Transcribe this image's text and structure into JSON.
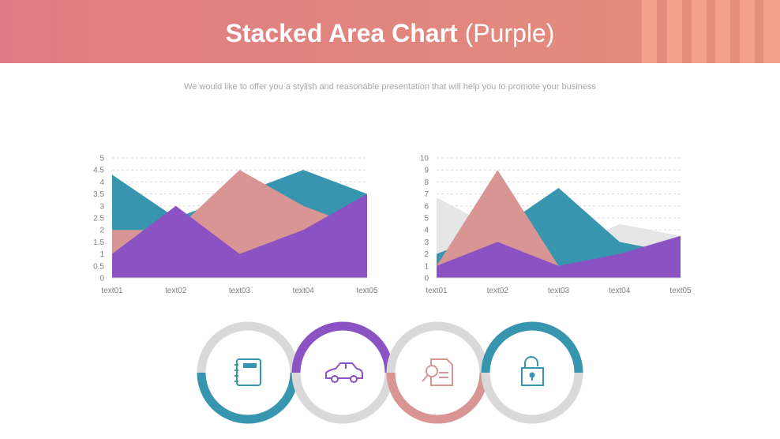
{
  "header": {
    "title_bold": "Stacked Area Chart",
    "title_light": "(Purple)"
  },
  "subtitle": "We would like to offer you a stylish and reasonable presentation that will help you to promote your business",
  "colors": {
    "teal": "#3795b0",
    "pink": "#d99593",
    "purple": "#8b52c3",
    "grey": "#e6e6e6",
    "ring": "#d9d9d9"
  },
  "chart_data": [
    {
      "type": "area",
      "categories": [
        "text01",
        "text02",
        "text03",
        "text04",
        "text05"
      ],
      "ylim": [
        0,
        5
      ],
      "yticks": [
        "0",
        "0.5",
        "1",
        "1.5",
        "2",
        "2.5",
        "3",
        "3.5",
        "4",
        "4.5",
        "5"
      ],
      "grid": true,
      "series": [
        {
          "color": "#3795b0",
          "values": [
            4.3,
            2.5,
            3.5,
            4.5,
            3.5
          ]
        },
        {
          "color": "#d99593",
          "values": [
            2,
            2,
            4.5,
            3,
            2
          ]
        },
        {
          "color": "#8b52c3",
          "values": [
            1,
            3,
            1,
            2,
            3.5
          ]
        }
      ]
    },
    {
      "type": "area",
      "categories": [
        "text01",
        "text02",
        "text03",
        "text04",
        "text05"
      ],
      "ylim": [
        0,
        10
      ],
      "yticks": [
        "0",
        "1",
        "2",
        "3",
        "4",
        "5",
        "6",
        "7",
        "8",
        "9",
        "10"
      ],
      "grid": true,
      "series": [
        {
          "color": "#e6e6e6",
          "values": [
            6.7,
            4,
            2,
            4.5,
            3.5
          ]
        },
        {
          "color": "#3795b0",
          "values": [
            2,
            4,
            7.5,
            3,
            2
          ]
        },
        {
          "color": "#d99593",
          "values": [
            1,
            9,
            1,
            1,
            1
          ]
        },
        {
          "color": "#8b52c3",
          "values": [
            1,
            3,
            1,
            2,
            3.5
          ]
        }
      ]
    }
  ],
  "rings": [
    {
      "icon": "notebook-icon",
      "color": "#3795b0",
      "half": "bottom"
    },
    {
      "icon": "car-icon",
      "color": "#8b52c3",
      "half": "top"
    },
    {
      "icon": "document-search-icon",
      "color": "#d99593",
      "half": "bottom"
    },
    {
      "icon": "padlock-icon",
      "color": "#3795b0",
      "half": "top"
    }
  ]
}
